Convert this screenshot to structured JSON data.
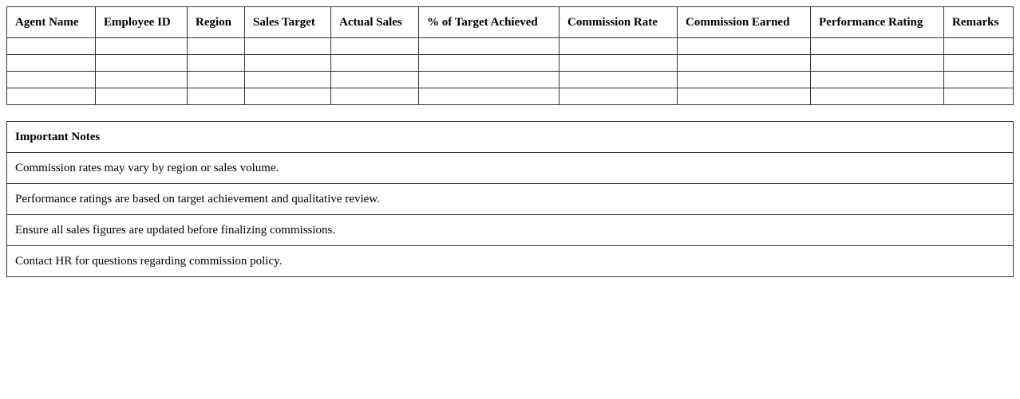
{
  "sales_table": {
    "headers": [
      "Agent Name",
      "Employee ID",
      "Region",
      "Sales Target",
      "Actual Sales",
      "% of Target Achieved",
      "Commission Rate",
      "Commission Earned",
      "Performance Rating",
      "Remarks"
    ],
    "empty_rows": 4
  },
  "notes": {
    "title": "Important Notes",
    "items": [
      "Commission rates may vary by region or sales volume.",
      "Performance ratings are based on target achievement and qualitative review.",
      "Ensure all sales figures are updated before finalizing commissions.",
      "Contact HR for questions regarding commission policy."
    ]
  }
}
